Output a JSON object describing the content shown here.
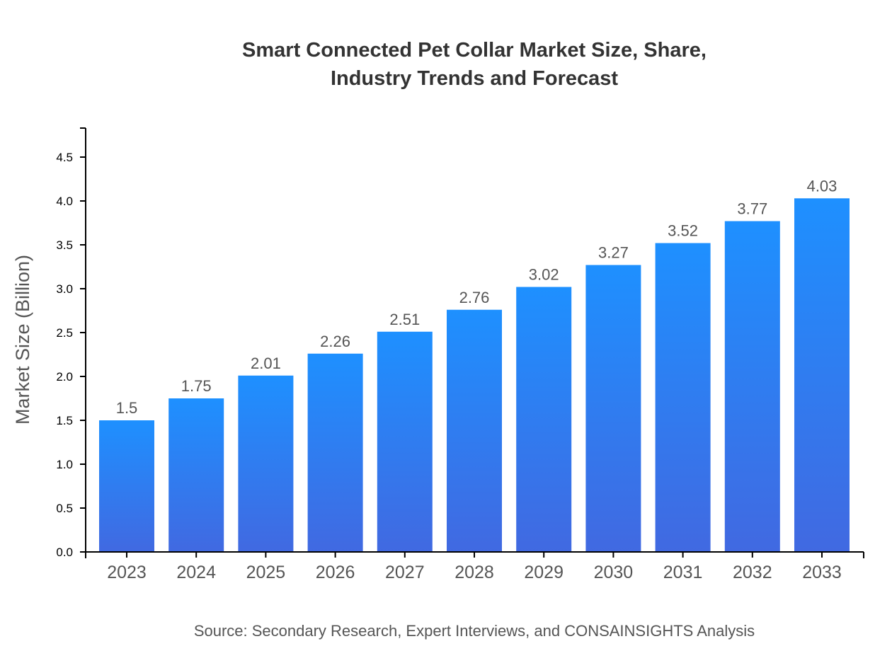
{
  "chart_data": {
    "type": "bar",
    "title_lines": [
      "Smart Connected Pet Collar Market Size, Share,",
      "Industry Trends and Forecast"
    ],
    "xlabel": "",
    "ylabel": "Market Size (Billion)",
    "categories": [
      "2023",
      "2024",
      "2025",
      "2026",
      "2027",
      "2028",
      "2029",
      "2030",
      "2031",
      "2032",
      "2033"
    ],
    "values": [
      1.5,
      1.75,
      2.01,
      2.26,
      2.51,
      2.76,
      3.02,
      3.27,
      3.52,
      3.77,
      4.03
    ],
    "data_labels": [
      "1.5",
      "1.75",
      "2.01",
      "2.26",
      "2.51",
      "2.76",
      "3.02",
      "3.27",
      "3.52",
      "3.77",
      "4.03"
    ],
    "yticks": [
      "0.0",
      "0.5",
      "1.0",
      "1.5",
      "2.0",
      "2.5",
      "3.0",
      "3.5",
      "4.0",
      "4.5"
    ],
    "ylim": [
      0,
      4.83
    ],
    "grid": false,
    "legend": "none",
    "colors": {
      "bar_top": "#1e90ff",
      "bar_bottom": "#4169e1"
    },
    "source": "Source: Secondary Research, Expert Interviews, and CONSAINSIGHTS Analysis"
  }
}
